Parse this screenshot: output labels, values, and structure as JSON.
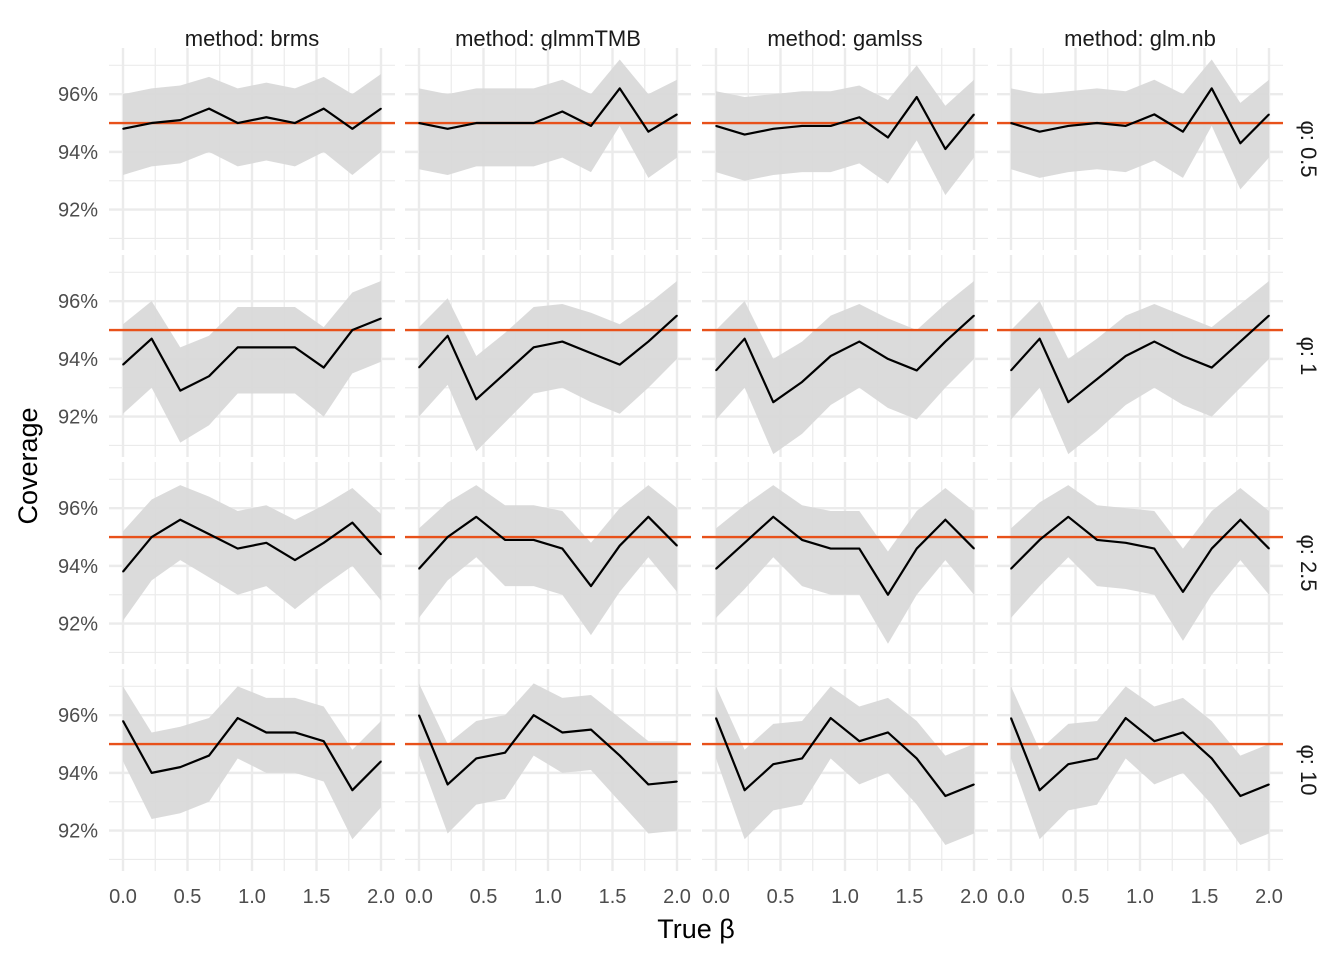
{
  "chart_data": {
    "type": "line",
    "xlabel": "True β",
    "ylabel": "Coverage",
    "xlim": [
      0,
      2
    ],
    "ylim": [
      90.6,
      97.6
    ],
    "x_ticks": [
      "0.0",
      "0.5",
      "1.0",
      "1.5",
      "2.0"
    ],
    "y_ticks": [
      "92%",
      "94%",
      "96%"
    ],
    "reference_line": 95,
    "colors": {
      "line": "#000000",
      "band": "#d9d9d9",
      "reference": "#e8511a",
      "grid": "#ebebeb"
    },
    "grid": true,
    "x": [
      0,
      0.222,
      0.444,
      0.667,
      0.889,
      1.111,
      1.333,
      1.556,
      1.778,
      2.0
    ],
    "methods": [
      "method: brms",
      "method: glmmTMB",
      "method: gamlss",
      "method: glm.nb"
    ],
    "phis": [
      "φ: 0.5",
      "φ: 1",
      "φ: 2.5",
      "φ: 10"
    ],
    "panels": [
      [
        {
          "y": [
            94.8,
            95.0,
            95.1,
            95.5,
            95.0,
            95.2,
            95.0,
            95.5,
            94.8,
            95.5
          ],
          "lo": [
            93.2,
            93.5,
            93.6,
            94.0,
            93.5,
            93.7,
            93.5,
            94.0,
            93.2,
            94.0
          ],
          "hi": [
            96.0,
            96.2,
            96.3,
            96.6,
            96.2,
            96.4,
            96.2,
            96.6,
            96.0,
            96.7
          ]
        },
        {
          "y": [
            95.0,
            94.8,
            95.0,
            95.0,
            95.0,
            95.4,
            94.9,
            96.2,
            94.7,
            95.3
          ],
          "lo": [
            93.4,
            93.2,
            93.5,
            93.5,
            93.5,
            93.8,
            93.3,
            94.9,
            93.1,
            93.8
          ],
          "hi": [
            96.2,
            96.0,
            96.2,
            96.2,
            96.2,
            96.5,
            96.0,
            97.2,
            96.0,
            96.5
          ]
        },
        {
          "y": [
            94.9,
            94.6,
            94.8,
            94.9,
            94.9,
            95.2,
            94.5,
            95.9,
            94.1,
            95.3
          ],
          "lo": [
            93.3,
            93.0,
            93.2,
            93.3,
            93.3,
            93.6,
            92.9,
            94.4,
            92.5,
            93.8
          ],
          "hi": [
            96.1,
            95.9,
            96.0,
            96.1,
            96.1,
            96.3,
            95.8,
            97.0,
            95.6,
            96.5
          ]
        },
        {
          "y": [
            95.0,
            94.7,
            94.9,
            95.0,
            94.9,
            95.3,
            94.7,
            96.2,
            94.3,
            95.3
          ],
          "lo": [
            93.4,
            93.1,
            93.3,
            93.4,
            93.3,
            93.7,
            93.1,
            94.9,
            92.7,
            93.8
          ],
          "hi": [
            96.2,
            96.0,
            96.1,
            96.2,
            96.1,
            96.5,
            96.0,
            97.2,
            95.7,
            96.5
          ]
        }
      ],
      [
        {
          "y": [
            93.8,
            94.7,
            92.9,
            93.4,
            94.4,
            94.4,
            94.4,
            93.7,
            95.0,
            95.4
          ],
          "lo": [
            92.1,
            93.0,
            91.1,
            91.7,
            92.8,
            92.8,
            92.8,
            92.0,
            93.5,
            93.9
          ],
          "hi": [
            95.2,
            96.0,
            94.4,
            94.8,
            95.8,
            95.8,
            95.8,
            95.1,
            96.3,
            96.7
          ]
        },
        {
          "y": [
            93.7,
            94.8,
            92.6,
            93.5,
            94.4,
            94.6,
            94.2,
            93.8,
            94.6,
            95.5
          ],
          "lo": [
            92.0,
            93.1,
            90.8,
            91.8,
            92.8,
            93.0,
            92.5,
            92.1,
            93.0,
            94.0
          ],
          "hi": [
            95.1,
            96.1,
            94.1,
            94.9,
            95.8,
            95.9,
            95.6,
            95.2,
            95.9,
            96.7
          ]
        },
        {
          "y": [
            93.6,
            94.7,
            92.5,
            93.2,
            94.1,
            94.6,
            94.0,
            93.6,
            94.6,
            95.5
          ],
          "lo": [
            91.9,
            93.0,
            90.7,
            91.4,
            92.4,
            93.0,
            92.3,
            91.9,
            93.0,
            94.0
          ],
          "hi": [
            95.0,
            96.0,
            94.0,
            94.6,
            95.5,
            95.9,
            95.4,
            95.0,
            95.9,
            96.7
          ]
        },
        {
          "y": [
            93.6,
            94.7,
            92.5,
            93.3,
            94.1,
            94.6,
            94.1,
            93.7,
            94.6,
            95.5
          ],
          "lo": [
            91.9,
            93.0,
            90.7,
            91.5,
            92.4,
            93.0,
            92.4,
            92.0,
            93.0,
            94.0
          ],
          "hi": [
            95.0,
            96.0,
            94.0,
            94.7,
            95.5,
            95.9,
            95.5,
            95.1,
            95.9,
            96.7
          ]
        }
      ],
      [
        {
          "y": [
            93.8,
            95.0,
            95.6,
            95.1,
            94.6,
            94.8,
            94.2,
            94.8,
            95.5,
            94.4
          ],
          "lo": [
            92.1,
            93.5,
            94.2,
            93.6,
            93.0,
            93.3,
            92.5,
            93.3,
            94.0,
            92.8
          ],
          "hi": [
            95.2,
            96.3,
            96.8,
            96.4,
            95.9,
            96.1,
            95.6,
            96.1,
            96.7,
            95.8
          ]
        },
        {
          "y": [
            93.9,
            95.0,
            95.7,
            94.9,
            94.9,
            94.6,
            93.3,
            94.7,
            95.7,
            94.7
          ],
          "lo": [
            92.2,
            93.5,
            94.3,
            93.3,
            93.3,
            93.0,
            91.6,
            93.1,
            94.3,
            93.1
          ],
          "hi": [
            95.3,
            96.2,
            96.8,
            96.1,
            96.1,
            95.9,
            94.8,
            96.0,
            96.8,
            96.0
          ]
        },
        {
          "y": [
            93.9,
            94.8,
            95.7,
            94.9,
            94.6,
            94.6,
            93.0,
            94.6,
            95.6,
            94.6
          ],
          "lo": [
            92.2,
            93.2,
            94.3,
            93.3,
            93.0,
            93.0,
            91.3,
            93.0,
            94.2,
            93.0
          ],
          "hi": [
            95.3,
            96.1,
            96.8,
            96.1,
            95.9,
            95.9,
            94.5,
            95.9,
            96.7,
            95.9
          ]
        },
        {
          "y": [
            93.9,
            94.9,
            95.7,
            94.9,
            94.8,
            94.6,
            93.1,
            94.6,
            95.6,
            94.6
          ],
          "lo": [
            92.2,
            93.3,
            94.3,
            93.3,
            93.2,
            93.0,
            91.4,
            93.0,
            94.2,
            93.0
          ],
          "hi": [
            95.3,
            96.2,
            96.8,
            96.1,
            96.0,
            95.9,
            94.6,
            95.9,
            96.7,
            95.9
          ]
        }
      ],
      [
        {
          "y": [
            95.8,
            94.0,
            94.2,
            94.6,
            95.9,
            95.4,
            95.4,
            95.1,
            93.4,
            94.4
          ],
          "lo": [
            94.4,
            92.4,
            92.6,
            93.0,
            94.5,
            94.0,
            94.0,
            93.7,
            91.7,
            92.8
          ],
          "hi": [
            97.0,
            95.4,
            95.6,
            95.9,
            97.0,
            96.6,
            96.6,
            96.3,
            94.8,
            95.8
          ]
        },
        {
          "y": [
            96.0,
            93.6,
            94.5,
            94.7,
            96.0,
            95.4,
            95.5,
            94.6,
            93.6,
            93.7
          ],
          "lo": [
            94.6,
            91.9,
            92.9,
            93.1,
            94.6,
            94.0,
            94.1,
            93.0,
            91.9,
            92.0
          ],
          "hi": [
            97.1,
            95.0,
            95.8,
            96.0,
            97.1,
            96.6,
            96.7,
            95.9,
            95.1,
            95.1
          ]
        },
        {
          "y": [
            95.9,
            93.4,
            94.3,
            94.5,
            95.9,
            95.1,
            95.4,
            94.5,
            93.2,
            93.6
          ],
          "lo": [
            94.5,
            91.7,
            92.7,
            92.9,
            94.5,
            93.6,
            94.0,
            92.9,
            91.5,
            91.9
          ],
          "hi": [
            97.0,
            94.8,
            95.7,
            95.8,
            97.0,
            96.3,
            96.6,
            95.8,
            94.6,
            95.0
          ]
        },
        {
          "y": [
            95.9,
            93.4,
            94.3,
            94.5,
            95.9,
            95.1,
            95.4,
            94.5,
            93.2,
            93.6
          ],
          "lo": [
            94.5,
            91.7,
            92.7,
            92.9,
            94.5,
            93.6,
            94.0,
            92.9,
            91.5,
            91.9
          ],
          "hi": [
            97.0,
            94.8,
            95.7,
            95.8,
            97.0,
            96.3,
            96.6,
            95.8,
            94.6,
            95.0
          ]
        }
      ]
    ]
  }
}
